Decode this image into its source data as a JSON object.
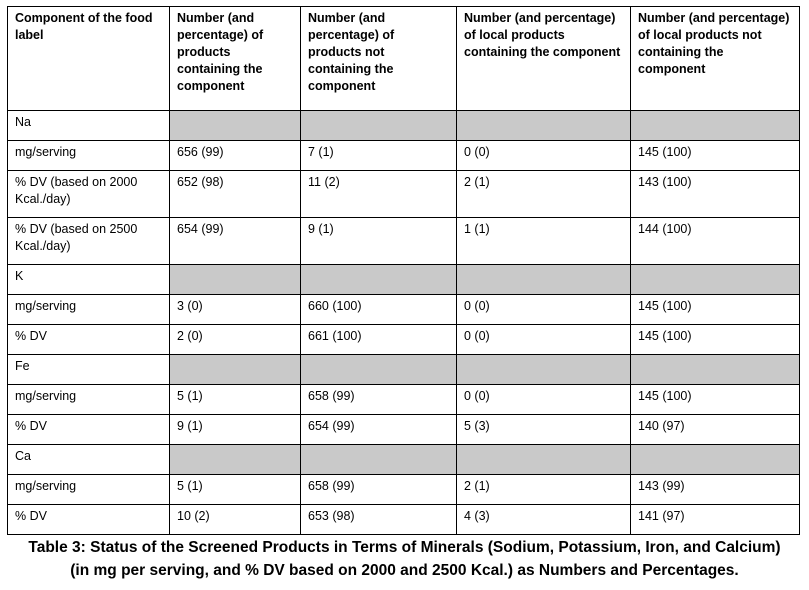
{
  "table": {
    "headers": [
      "Component of the food label",
      "Number (and percentage) of products containing the component",
      "Number (and percentage) of products not containing the component",
      "Number (and percentage) of local products containing the component",
      "Number (and percentage) of local products not containing the component"
    ],
    "sections": [
      {
        "mineral": "Na",
        "rows": [
          [
            "mg/serving",
            "656  (99)",
            "7 (1)",
            "0 (0)",
            "145 (100)"
          ],
          [
            "% DV (based on 2000 Kcal./day)",
            "652 (98)",
            "11 (2)",
            "2 (1)",
            "143 (100)"
          ],
          [
            "% DV (based on 2500 Kcal./day)",
            "654  (99)",
            "9 (1)",
            "1 (1)",
            "144 (100)"
          ]
        ]
      },
      {
        "mineral": "K",
        "rows": [
          [
            "mg/serving",
            "3 (0)",
            "660 (100)",
            "0 (0)",
            "145 (100)"
          ],
          [
            "% DV",
            "2 (0)",
            "661  (100)",
            "0 (0)",
            "145 (100)"
          ]
        ]
      },
      {
        "mineral": "Fe",
        "rows": [
          [
            "mg/serving",
            "5 (1)",
            "658 (99)",
            "0 (0)",
            "145 (100)"
          ],
          [
            "% DV",
            "9 (1)",
            "654  (99)",
            "5 (3)",
            "140  (97)"
          ]
        ]
      },
      {
        "mineral": "Ca",
        "rows": [
          [
            "mg/serving",
            "5 (1)",
            "658  (99)",
            "2 (1)",
            "143 (99)"
          ],
          [
            "% DV",
            "10 (2)",
            "653  (98)",
            "4 (3)",
            "141  (97)"
          ]
        ]
      }
    ]
  },
  "caption": {
    "line1": "Table 3: Status of the Screened Products in Terms of Minerals (Sodium, Potassium, Iron, and Calcium)",
    "line2": "(in mg per serving, and % DV based on 2000 and 2500 Kcal.) as Numbers and Percentages."
  },
  "colors": {
    "section_shade": "#c9c9c9",
    "border": "#000000"
  }
}
